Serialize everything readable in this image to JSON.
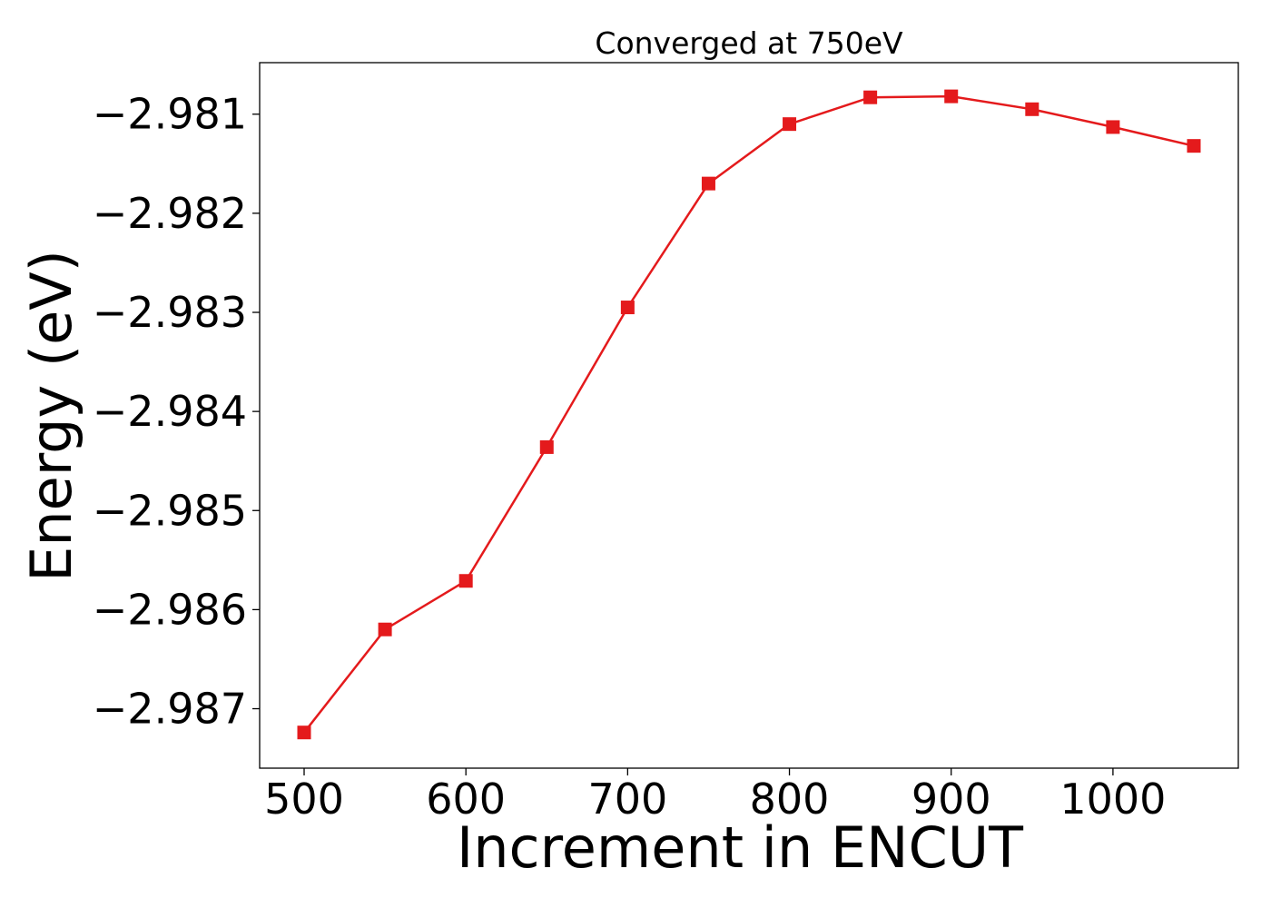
{
  "chart_data": {
    "type": "line",
    "title": "Converged at 750eV",
    "xlabel": "Increment in ENCUT",
    "ylabel": "Energy (eV)",
    "x": [
      500,
      550,
      600,
      650,
      700,
      750,
      800,
      850,
      900,
      950,
      1000,
      1050
    ],
    "series": [
      {
        "values": [
          -2.98724,
          -2.9862,
          -2.98571,
          -2.98436,
          -2.98295,
          -2.9817,
          -2.9811,
          -2.98083,
          -2.98082,
          -2.98095,
          -2.98113,
          -2.98132
        ],
        "color": "#e41a1c",
        "marker": "square"
      }
    ],
    "xlim": [
      472.5,
      1077.5
    ],
    "ylim": [
      -2.9876,
      -2.98048
    ],
    "xticks": [
      500,
      600,
      700,
      800,
      900,
      1000
    ],
    "xtick_labels": [
      "500",
      "600",
      "700",
      "800",
      "900",
      "1000"
    ],
    "yticks": [
      -2.987,
      -2.986,
      -2.985,
      -2.984,
      -2.983,
      -2.982,
      -2.981
    ],
    "ytick_labels": [
      "−2.987",
      "−2.986",
      "−2.985",
      "−2.984",
      "−2.983",
      "−2.982",
      "−2.981"
    ],
    "grid": false,
    "legend": "none"
  }
}
